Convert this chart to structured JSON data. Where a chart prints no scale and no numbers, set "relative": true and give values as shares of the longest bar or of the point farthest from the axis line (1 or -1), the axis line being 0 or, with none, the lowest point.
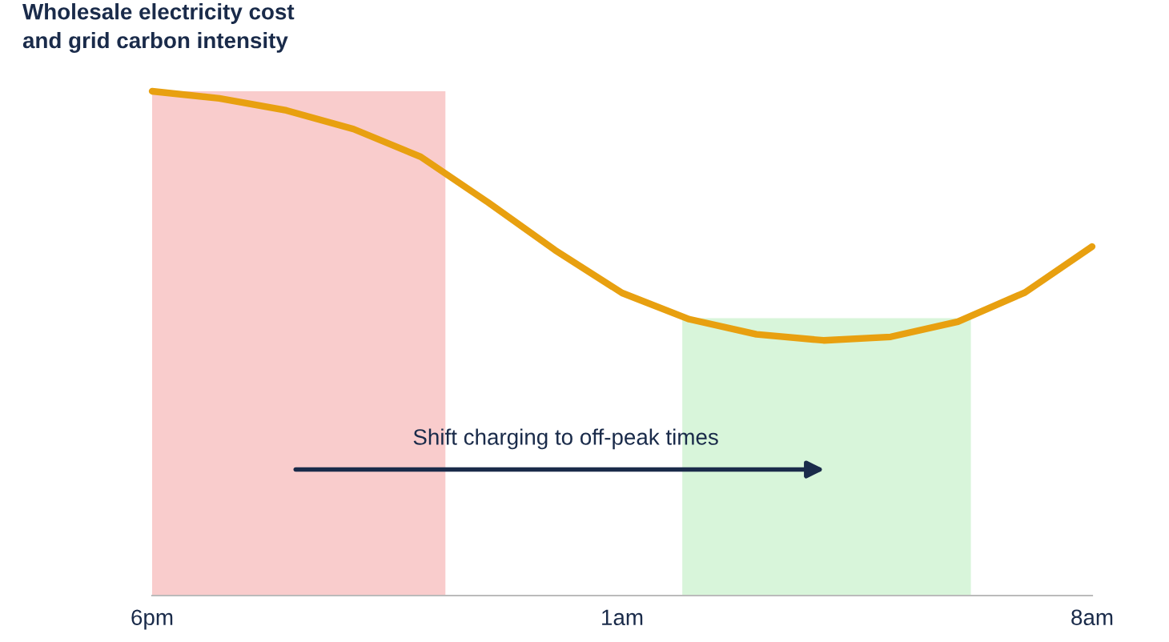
{
  "chart_data": {
    "type": "line",
    "title": "Wholesale electricity cost\nand grid carbon intensity",
    "relative": true,
    "categories": [
      "6pm",
      null,
      null,
      null,
      null,
      null,
      null,
      "1am",
      null,
      null,
      null,
      null,
      null,
      null,
      "8am"
    ],
    "series": [
      {
        "values": [
          1,
          0.986,
          0.962,
          0.925,
          0.87,
          0.78,
          0.685,
          0.6,
          0.548,
          0.518,
          0.506,
          0.513,
          0.543,
          0.601,
          0.692
        ],
        "color": "#e8a010"
      }
    ],
    "annotations": [
      "Shift charging to off-peak times"
    ],
    "grid": false
  }
}
